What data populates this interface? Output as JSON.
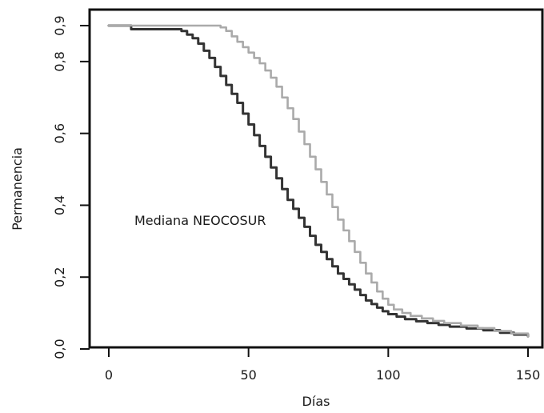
{
  "chart_data": {
    "type": "line",
    "title": "",
    "xlabel": "Días",
    "ylabel": "Permanencia",
    "xlim": [
      0,
      150
    ],
    "ylim": [
      0.0,
      0.9
    ],
    "xticks": [
      0,
      50,
      100,
      150
    ],
    "yticks": [
      0.0,
      0.2,
      0.4,
      0.6,
      0.8,
      0.9
    ],
    "xtick_labels": [
      "0",
      "50",
      "100",
      "150"
    ],
    "ytick_labels": [
      "0,0",
      "0,2",
      "0,4",
      "0,6",
      "0,8",
      "0,9"
    ],
    "grid": false,
    "legend": "none",
    "annotations": [
      {
        "text": "Mediana NEOCOSUR",
        "x": 63,
        "y": 0.35
      }
    ],
    "series": [
      {
        "color": "#333333",
        "points": [
          [
            0,
            0.9
          ],
          [
            8,
            0.9
          ],
          [
            8,
            0.89
          ],
          [
            24,
            0.89
          ],
          [
            26,
            0.885
          ],
          [
            28,
            0.875
          ],
          [
            30,
            0.865
          ],
          [
            32,
            0.85
          ],
          [
            34,
            0.83
          ],
          [
            36,
            0.81
          ],
          [
            38,
            0.785
          ],
          [
            40,
            0.76
          ],
          [
            42,
            0.735
          ],
          [
            44,
            0.71
          ],
          [
            46,
            0.685
          ],
          [
            48,
            0.655
          ],
          [
            50,
            0.625
          ],
          [
            52,
            0.595
          ],
          [
            54,
            0.565
          ],
          [
            56,
            0.535
          ],
          [
            58,
            0.505
          ],
          [
            60,
            0.475
          ],
          [
            62,
            0.445
          ],
          [
            64,
            0.415
          ],
          [
            66,
            0.39
          ],
          [
            68,
            0.365
          ],
          [
            70,
            0.34
          ],
          [
            72,
            0.315
          ],
          [
            74,
            0.29
          ],
          [
            76,
            0.27
          ],
          [
            78,
            0.25
          ],
          [
            80,
            0.23
          ],
          [
            82,
            0.21
          ],
          [
            84,
            0.195
          ],
          [
            86,
            0.18
          ],
          [
            88,
            0.165
          ],
          [
            90,
            0.15
          ],
          [
            92,
            0.135
          ],
          [
            94,
            0.125
          ],
          [
            96,
            0.115
          ],
          [
            98,
            0.105
          ],
          [
            100,
            0.097
          ],
          [
            103,
            0.09
          ],
          [
            106,
            0.083
          ],
          [
            110,
            0.077
          ],
          [
            114,
            0.072
          ],
          [
            118,
            0.067
          ],
          [
            122,
            0.062
          ],
          [
            128,
            0.057
          ],
          [
            134,
            0.052
          ],
          [
            140,
            0.045
          ],
          [
            145,
            0.04
          ],
          [
            150,
            0.035
          ]
        ]
      },
      {
        "color": "#aaaaaa",
        "points": [
          [
            0,
            0.9
          ],
          [
            25,
            0.9
          ],
          [
            38,
            0.9
          ],
          [
            40,
            0.895
          ],
          [
            42,
            0.885
          ],
          [
            44,
            0.87
          ],
          [
            46,
            0.855
          ],
          [
            48,
            0.84
          ],
          [
            50,
            0.825
          ],
          [
            52,
            0.81
          ],
          [
            54,
            0.795
          ],
          [
            56,
            0.775
          ],
          [
            58,
            0.755
          ],
          [
            60,
            0.73
          ],
          [
            62,
            0.7
          ],
          [
            64,
            0.67
          ],
          [
            66,
            0.64
          ],
          [
            68,
            0.605
          ],
          [
            70,
            0.57
          ],
          [
            72,
            0.535
          ],
          [
            74,
            0.5
          ],
          [
            76,
            0.465
          ],
          [
            78,
            0.43
          ],
          [
            80,
            0.395
          ],
          [
            82,
            0.36
          ],
          [
            84,
            0.33
          ],
          [
            86,
            0.3
          ],
          [
            88,
            0.27
          ],
          [
            90,
            0.24
          ],
          [
            92,
            0.21
          ],
          [
            94,
            0.185
          ],
          [
            96,
            0.16
          ],
          [
            98,
            0.14
          ],
          [
            100,
            0.123
          ],
          [
            102,
            0.11
          ],
          [
            105,
            0.1
          ],
          [
            108,
            0.092
          ],
          [
            112,
            0.085
          ],
          [
            116,
            0.078
          ],
          [
            120,
            0.072
          ],
          [
            126,
            0.065
          ],
          [
            132,
            0.058
          ],
          [
            138,
            0.05
          ],
          [
            144,
            0.043
          ],
          [
            150,
            0.035
          ]
        ]
      }
    ]
  }
}
